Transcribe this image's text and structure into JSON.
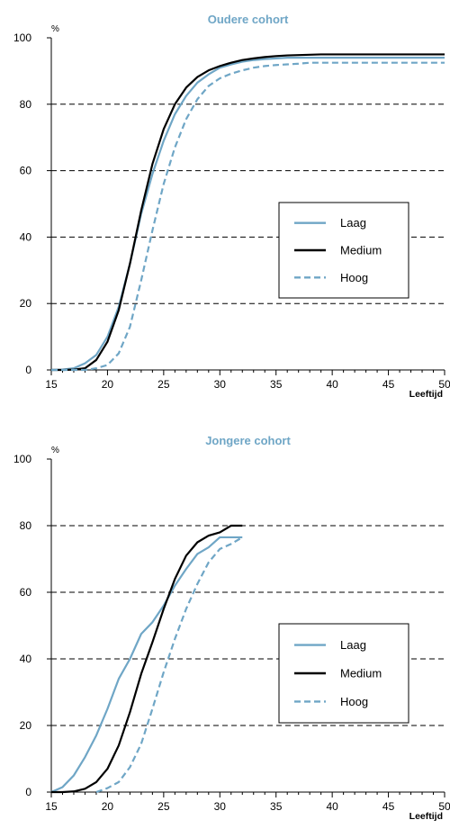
{
  "colors": {
    "laag": "#6fa6c6",
    "medium": "#000000",
    "hoog": "#6fa6c6",
    "title": "#6fa6c6",
    "axis": "#000000",
    "grid": "#000000"
  },
  "chart_data": [
    {
      "type": "line",
      "title": "Oudere cohort",
      "ylabel": "%",
      "xlabel": "Leeftijd",
      "xlim": [
        15,
        50
      ],
      "ylim": [
        0,
        100
      ],
      "xticks": [
        "15",
        "20",
        "25",
        "30",
        "35",
        "40",
        "45",
        "50"
      ],
      "yticks": [
        "0",
        "20",
        "40",
        "60",
        "80",
        "100"
      ],
      "grid": "horizontal dashed",
      "legend_position": "center-right",
      "series": [
        {
          "name": "Laag",
          "style": "solid-blue",
          "x": [
            15,
            16,
            17,
            18,
            19,
            20,
            21,
            22,
            23,
            24,
            25,
            26,
            27,
            28,
            29,
            30,
            31,
            32,
            33,
            34,
            35,
            36,
            37,
            38,
            39,
            40,
            41,
            42,
            43,
            44,
            45,
            46,
            47,
            48,
            49,
            50
          ],
          "y": [
            0,
            0.1,
            0.5,
            2,
            4.5,
            10,
            19,
            32,
            47,
            59,
            69,
            77,
            82.5,
            86.5,
            89,
            91,
            92,
            92.8,
            93.3,
            93.6,
            93.8,
            94,
            94,
            94,
            94,
            94,
            94,
            94,
            94,
            94,
            94,
            94,
            94,
            94,
            94,
            94
          ]
        },
        {
          "name": "Medium",
          "style": "solid-black",
          "x": [
            15,
            16,
            17,
            18,
            19,
            20,
            21,
            22,
            23,
            24,
            25,
            26,
            27,
            28,
            29,
            30,
            31,
            32,
            33,
            34,
            35,
            36,
            37,
            38,
            39,
            40,
            41,
            42,
            43,
            44,
            45,
            46,
            47,
            48,
            49,
            50
          ],
          "y": [
            0,
            0,
            0.1,
            0.5,
            3,
            8.5,
            18,
            32,
            48,
            62,
            72.5,
            80,
            85,
            88.2,
            90.2,
            91.5,
            92.5,
            93.3,
            93.8,
            94.2,
            94.5,
            94.7,
            94.8,
            94.9,
            95,
            95,
            95,
            95,
            95,
            95,
            95,
            95,
            95,
            95,
            95,
            95
          ]
        },
        {
          "name": "Hoog",
          "style": "dashed-blue",
          "x": [
            15,
            16,
            17,
            18,
            19,
            20,
            21,
            22,
            23,
            24,
            25,
            26,
            27,
            28,
            29,
            30,
            31,
            32,
            33,
            34,
            35,
            36,
            37,
            38,
            39,
            40,
            41,
            42,
            43,
            44,
            45,
            46,
            47,
            48,
            49,
            50
          ],
          "y": [
            0,
            0,
            0,
            0,
            0.5,
            1.5,
            5,
            13,
            27,
            42,
            56,
            67,
            75.5,
            81.5,
            85.5,
            87.8,
            89.2,
            90.2,
            91,
            91.5,
            91.8,
            92,
            92.2,
            92.5,
            92.5,
            92.5,
            92.5,
            92.5,
            92.5,
            92.5,
            92.5,
            92.5,
            92.5,
            92.5,
            92.5,
            92.5
          ]
        }
      ]
    },
    {
      "type": "line",
      "title": "Jongere cohort",
      "ylabel": "%",
      "xlabel": "Leeftijd",
      "xlim": [
        15,
        50
      ],
      "ylim": [
        0,
        100
      ],
      "xticks": [
        "15",
        "20",
        "25",
        "30",
        "35",
        "40",
        "45",
        "50"
      ],
      "yticks": [
        "0",
        "20",
        "40",
        "60",
        "80",
        "100"
      ],
      "grid": "horizontal dashed",
      "legend_position": "center-right",
      "series": [
        {
          "name": "Laag",
          "style": "solid-blue",
          "x": [
            15,
            16,
            17,
            18,
            19,
            20,
            21,
            22,
            23,
            24,
            25,
            26,
            27,
            28,
            29,
            30,
            31,
            32
          ],
          "y": [
            0,
            1.5,
            5,
            10.5,
            17,
            25,
            34,
            40,
            47.5,
            51,
            56,
            62,
            67,
            71.5,
            73.5,
            76.5,
            76.5,
            76.5
          ]
        },
        {
          "name": "Medium",
          "style": "solid-black",
          "x": [
            15,
            16,
            17,
            18,
            19,
            20,
            21,
            22,
            23,
            24,
            25,
            26,
            27,
            28,
            29,
            30,
            31,
            32
          ],
          "y": [
            0,
            0,
            0.2,
            1,
            3,
            7,
            14,
            24,
            35.5,
            45,
            55,
            64,
            71,
            75,
            77,
            78,
            80,
            80
          ]
        },
        {
          "name": "Hoog",
          "style": "dashed-blue",
          "x": [
            19,
            20,
            21,
            22,
            23,
            24,
            25,
            26,
            27,
            28,
            29,
            30,
            31,
            32
          ],
          "y": [
            0,
            1.2,
            3,
            7.5,
            14.5,
            25,
            36,
            46,
            55,
            62.5,
            69,
            73,
            74.5,
            76.5
          ]
        }
      ]
    }
  ]
}
